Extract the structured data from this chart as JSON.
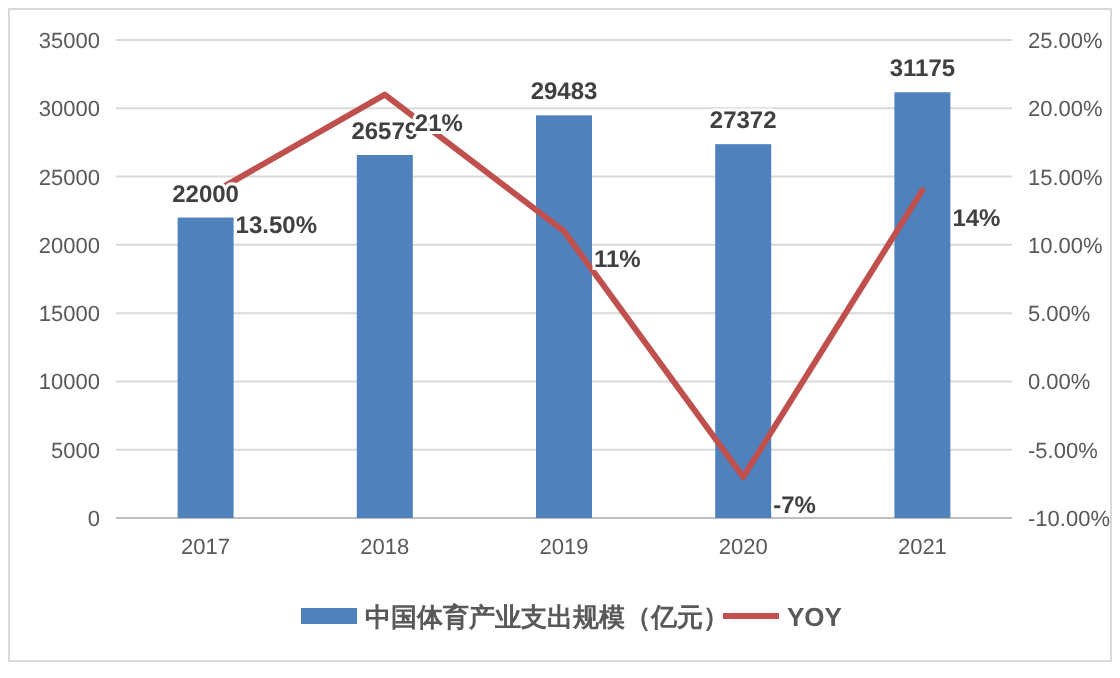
{
  "chart_data": {
    "type": "bar",
    "categories": [
      "2017",
      "2018",
      "2019",
      "2020",
      "2021"
    ],
    "series": [
      {
        "name": "中国体育产业支出规模（亿元）",
        "color": "#4f81bd",
        "values": [
          22000,
          26579,
          29483,
          27372,
          31175
        ]
      },
      {
        "name": "YOY",
        "type": "line",
        "axis": "y2",
        "color": "#c0504d",
        "values": [
          13.5,
          21,
          11,
          -7,
          14
        ],
        "value_labels": [
          "13.50%",
          "21%",
          "11%",
          "-7%",
          "14%"
        ]
      }
    ],
    "data_labels": true,
    "ylim": [
      0,
      35000
    ],
    "yticks": [
      0,
      5000,
      10000,
      15000,
      20000,
      25000,
      30000,
      35000
    ],
    "y2lim": [
      -10,
      25
    ],
    "y2ticks": [
      {
        "value": -10,
        "label": "-10.00%"
      },
      {
        "value": -5,
        "label": "-5.00%"
      },
      {
        "value": 0,
        "label": "0.00%"
      },
      {
        "value": 5,
        "label": "5.00%"
      },
      {
        "value": 10,
        "label": "10.00%"
      },
      {
        "value": 15,
        "label": "15.00%"
      },
      {
        "value": 20,
        "label": "20.00%"
      },
      {
        "value": 25,
        "label": "25.00%"
      }
    ],
    "grid": "y",
    "legend": "bottom",
    "marker": "none",
    "line_style": "solid"
  }
}
